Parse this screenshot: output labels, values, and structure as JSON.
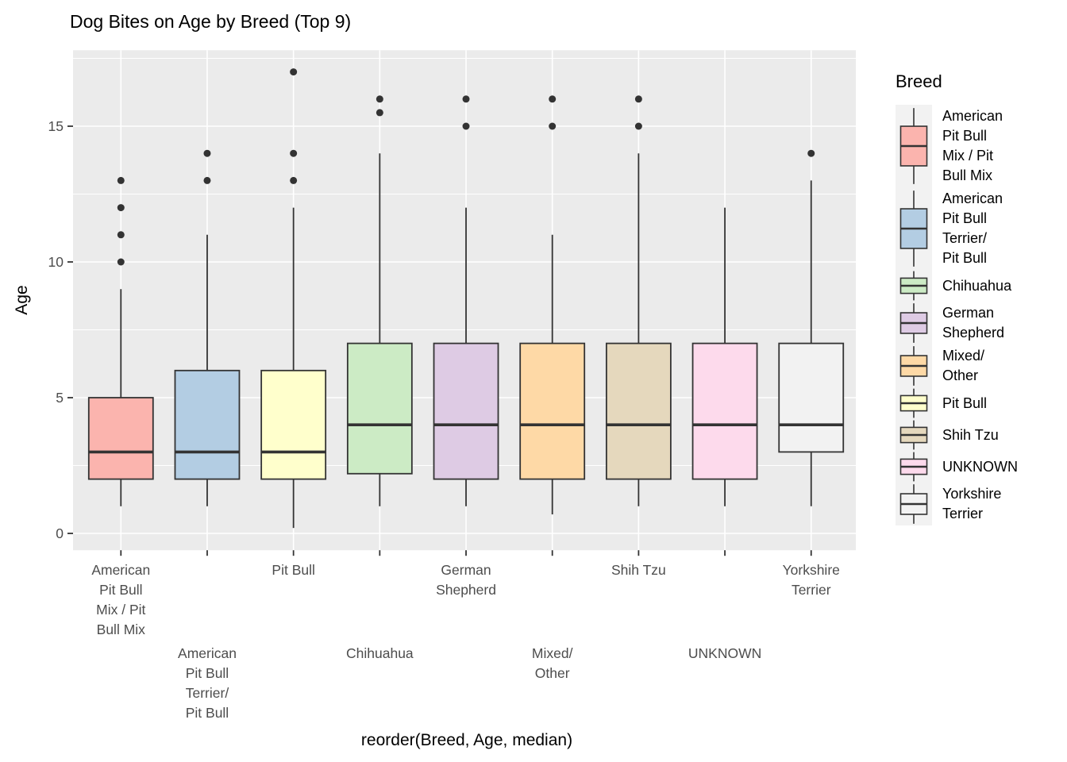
{
  "title": "Dog Bites on Age by Breed (Top 9)",
  "legend": {
    "title": "Breed",
    "items": [
      {
        "label_lines": [
          "American",
          "Pit Bull",
          "Mix / Pit",
          "Bull Mix"
        ],
        "color": "#FBB4AE"
      },
      {
        "label_lines": [
          "American",
          "Pit Bull",
          "Terrier/",
          "Pit Bull"
        ],
        "color": "#B3CDE3"
      },
      {
        "label_lines": [
          "Chihuahua"
        ],
        "color": "#CCEBC5"
      },
      {
        "label_lines": [
          "German",
          "Shepherd"
        ],
        "color": "#DECBE4"
      },
      {
        "label_lines": [
          "Mixed/",
          "Other"
        ],
        "color": "#FED9A6"
      },
      {
        "label_lines": [
          "Pit Bull"
        ],
        "color": "#FFFFCC"
      },
      {
        "label_lines": [
          "Shih Tzu"
        ],
        "color": "#E5D8BD"
      },
      {
        "label_lines": [
          "UNKNOWN"
        ],
        "color": "#FDDAEC"
      },
      {
        "label_lines": [
          "Yorkshire",
          "Terrier"
        ],
        "color": "#F2F2F2"
      }
    ]
  },
  "chart_data": {
    "type": "boxplot",
    "title": "Dog Bites on Age by Breed (Top 9)",
    "xlabel": "reorder(Breed, Age, median)",
    "ylabel": "Age",
    "y_ticks": [
      0,
      5,
      10,
      15
    ],
    "y_tick_labels": [
      "0",
      "5",
      "10",
      "15"
    ],
    "y_minor": [
      2.5,
      7.5,
      12.5,
      17.5
    ],
    "ylim": [
      -0.62,
      17.8
    ],
    "legend_position": "right",
    "grid": true,
    "categories": [
      "American Pit Bull Mix / Pit Bull Mix",
      "American Pit Bull Terrier/ Pit Bull",
      "Pit Bull",
      "Chihuahua",
      "German Shepherd",
      "Mixed/ Other",
      "Shih Tzu",
      "UNKNOWN",
      "Yorkshire Terrier"
    ],
    "series": [
      {
        "name": "American Pit Bull Mix / Pit Bull Mix",
        "color": "#FBB4AE",
        "row": 1,
        "label_lines": [
          "American",
          "Pit Bull",
          "Mix / Pit",
          "Bull Mix"
        ],
        "whisker_low": 1,
        "q1": 2,
        "median": 3,
        "q3": 5,
        "whisker_high": 9,
        "outliers": [
          10,
          11,
          12,
          13
        ]
      },
      {
        "name": "American Pit Bull Terrier/ Pit Bull",
        "color": "#B3CDE3",
        "row": 2,
        "label_lines": [
          "American",
          "Pit Bull",
          "Terrier/",
          "Pit Bull"
        ],
        "whisker_low": 1,
        "q1": 2,
        "median": 3,
        "q3": 6,
        "whisker_high": 11,
        "outliers": [
          13,
          14
        ]
      },
      {
        "name": "Pit Bull",
        "color": "#FFFFCC",
        "row": 1,
        "label_lines": [
          "Pit Bull"
        ],
        "whisker_low": 0.2,
        "q1": 2,
        "median": 3,
        "q3": 6,
        "whisker_high": 12,
        "outliers": [
          13,
          14,
          17
        ]
      },
      {
        "name": "Chihuahua",
        "color": "#CCEBC5",
        "row": 2,
        "label_lines": [
          "Chihuahua"
        ],
        "whisker_low": 1,
        "q1": 2.2,
        "median": 4,
        "q3": 7,
        "whisker_high": 14,
        "outliers": [
          15.5,
          16
        ]
      },
      {
        "name": "German Shepherd",
        "color": "#DECBE4",
        "row": 1,
        "label_lines": [
          "German",
          "Shepherd"
        ],
        "whisker_low": 1,
        "q1": 2,
        "median": 4,
        "q3": 7,
        "whisker_high": 12,
        "outliers": [
          15,
          16
        ]
      },
      {
        "name": "Mixed/ Other",
        "color": "#FED9A6",
        "row": 2,
        "label_lines": [
          "Mixed/",
          "Other"
        ],
        "whisker_low": 0.7,
        "q1": 2,
        "median": 4,
        "q3": 7,
        "whisker_high": 11,
        "outliers": [
          15,
          16
        ]
      },
      {
        "name": "Shih Tzu",
        "color": "#E5D8BD",
        "row": 1,
        "label_lines": [
          "Shih Tzu"
        ],
        "whisker_low": 1,
        "q1": 2,
        "median": 4,
        "q3": 7,
        "whisker_high": 14,
        "outliers": [
          15,
          16
        ]
      },
      {
        "name": "UNKNOWN",
        "color": "#FDDAEC",
        "row": 2,
        "label_lines": [
          "UNKNOWN"
        ],
        "whisker_low": 1,
        "q1": 2,
        "median": 4,
        "q3": 7,
        "whisker_high": 12,
        "outliers": []
      },
      {
        "name": "Yorkshire Terrier",
        "color": "#F2F2F2",
        "row": 1,
        "label_lines": [
          "Yorkshire",
          "Terrier"
        ],
        "whisker_low": 1,
        "q1": 3,
        "median": 4,
        "q3": 7,
        "whisker_high": 13,
        "outliers": [
          14
        ]
      }
    ]
  },
  "colors": {
    "page_bg": "#FFFFFF",
    "panel_bg": "#EBEBEB",
    "grid": "#FFFFFF",
    "box_border": "#333333",
    "axis_text": "#4D4D4D",
    "tick_mark": "#333333",
    "legend_key_bg": "#F2F2F2",
    "text": "#000000"
  }
}
